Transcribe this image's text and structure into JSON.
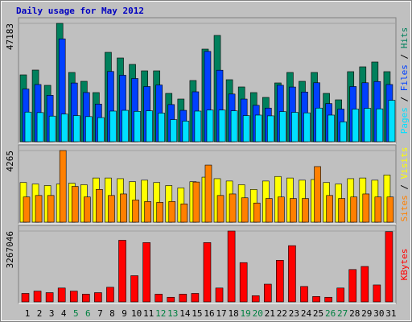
{
  "legend_separator": " / ",
  "chart_data": [
    {
      "type": "bar",
      "title": "Daily usage for May 2012",
      "ylim": [
        0,
        47183
      ],
      "yticks": [
        47183
      ],
      "series": [
        {
          "name": "Hits",
          "color": "#00805c",
          "values": [
            26643,
            28569,
            22470,
            47183,
            27606,
            24075,
            19581,
            35631,
            33384,
            30816,
            28248,
            28248,
            19260,
            17013,
            24396,
            36915,
            42372,
            24717,
            21828,
            19581,
            17655,
            23433,
            27606,
            24075,
            27606,
            19260,
            16692,
            27927,
            29853,
            31779,
            27927
          ]
        },
        {
          "name": "Files",
          "color": "#0040ff",
          "values": [
            21000,
            22800,
            18500,
            41000,
            23400,
            19600,
            15000,
            28000,
            26500,
            25200,
            22000,
            22600,
            14800,
            12500,
            19900,
            36000,
            28500,
            19000,
            17000,
            14500,
            13400,
            22500,
            21800,
            19800,
            23500,
            15200,
            13000,
            22000,
            23500,
            24000,
            22800
          ]
        },
        {
          "name": "Pages",
          "color": "#00e0ff",
          "values": [
            11800,
            11600,
            10200,
            11000,
            10400,
            10000,
            9600,
            12200,
            12500,
            12100,
            12300,
            11400,
            8800,
            8200,
            12200,
            12600,
            12600,
            12300,
            10400,
            10600,
            10300,
            12000,
            11700,
            11500,
            13400,
            10600,
            7900,
            13000,
            13300,
            13100,
            16500
          ]
        }
      ]
    },
    {
      "type": "bar",
      "ylim": [
        0,
        4265
      ],
      "yticks": [
        4265
      ],
      "series": [
        {
          "name": "Visits",
          "color": "#ffff00",
          "values": [
            2360,
            2270,
            2180,
            2270,
            2320,
            2230,
            2630,
            2630,
            2590,
            2410,
            2500,
            2360,
            2180,
            2040,
            2410,
            2680,
            2590,
            2450,
            2230,
            1950,
            2450,
            2720,
            2630,
            2500,
            2540,
            2360,
            2270,
            2590,
            2630,
            2500,
            2810
          ]
        },
        {
          "name": "Sites",
          "color": "#ff8000",
          "values": [
            1500,
            1590,
            1590,
            4265,
            2130,
            1500,
            1950,
            1590,
            1680,
            1320,
            1230,
            1180,
            1230,
            1090,
            2390,
            3400,
            1590,
            1680,
            1450,
            1140,
            1410,
            1500,
            1410,
            1410,
            3310,
            1590,
            1410,
            1500,
            1680,
            1500,
            1500
          ]
        }
      ]
    },
    {
      "type": "bar",
      "ylim": [
        0,
        3267046
      ],
      "yticks": [
        3267046
      ],
      "categories": [
        "1",
        "2",
        "3",
        "4",
        "5",
        "6",
        "7",
        "8",
        "9",
        "10",
        "11",
        "12",
        "13",
        "14",
        "15",
        "16",
        "17",
        "18",
        "19",
        "20",
        "21",
        "22",
        "23",
        "24",
        "25",
        "26",
        "27",
        "28",
        "29",
        "30",
        "31"
      ],
      "category_colors": [
        "#000000",
        "#000000",
        "#000000",
        "#000000",
        "#008040",
        "#008040",
        "#000000",
        "#000000",
        "#000000",
        "#000000",
        "#000000",
        "#008040",
        "#008040",
        "#000000",
        "#000000",
        "#000000",
        "#000000",
        "#000000",
        "#008040",
        "#008040",
        "#000000",
        "#000000",
        "#000000",
        "#000000",
        "#000000",
        "#008040",
        "#008040",
        "#000000",
        "#000000",
        "#000000",
        "#000000"
      ],
      "series": [
        {
          "name": "KBytes",
          "color": "#ff0000",
          "values": [
            390632,
            497168,
            426144,
            639216,
            497168,
            355120,
            426144,
            674728,
            2840960,
            1207408,
            2734424,
            355120,
            213072,
            355120,
            390632,
            2734424,
            639216,
            3267046,
            1811112,
            284096,
            816776,
            1917648,
            2592376,
            710240,
            248584,
            213072,
            639216,
            1491504,
            1633552,
            781264,
            3240000
          ]
        }
      ]
    }
  ]
}
